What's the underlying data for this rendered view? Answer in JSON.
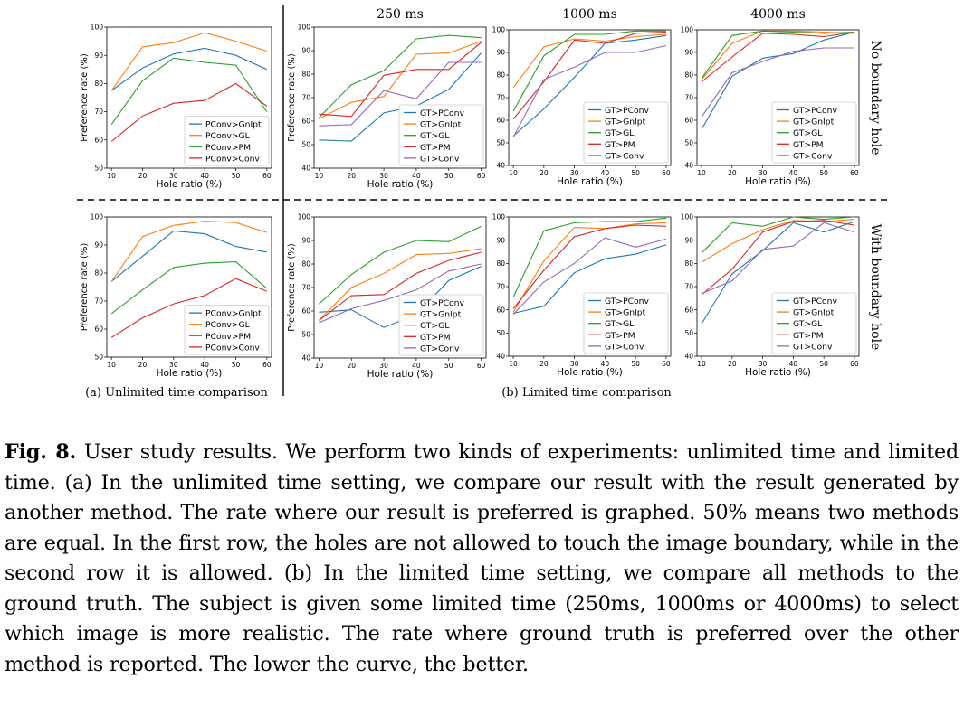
{
  "figure": {
    "column_titles": [
      "250 ms",
      "1000 ms",
      "4000 ms"
    ],
    "row_titles": [
      "No boundary hole",
      "With boundary hole"
    ],
    "subcaptions": [
      "(a) Unlimited time comparison",
      "(b) Limited time comparison"
    ]
  },
  "caption": {
    "label": "Fig. 8.",
    "text": "User study results. We perform two kinds of experiments: unlimited time and limited time. (a) In the unlimited time setting, we compare our result with the result generated by another method. The rate where our result is preferred is graphed. 50% means two methods are equal. In the first row, the holes are not allowed to touch the image boundary, while in the second row it is allowed. (b) In the limited time setting, we compare all methods to the ground truth. The subject is given some limited time (250ms, 1000ms or 4000ms) to select which image is more realistic. The rate where ground truth is preferred over the other method is reported. The lower the curve, the better."
  },
  "colors": {
    "blue": "#1f77b4",
    "orange": "#ff7f0e",
    "green": "#2ca02c",
    "red": "#d62728",
    "purple": "#9467bd"
  },
  "chart_data": [
    {
      "id": "unlimited-no-boundary",
      "type": "line",
      "xlabel": "Hole ratio (%)",
      "ylabel": "Preference rate (%)",
      "x": [
        10,
        20,
        30,
        40,
        50,
        60
      ],
      "ylim": [
        50,
        100
      ],
      "yticks": [
        50,
        60,
        70,
        80,
        90,
        100
      ],
      "series": [
        {
          "name": "PConv>GnIpt",
          "color": "#1f77b4",
          "values": [
            77.5,
            85.5,
            90.5,
            92.5,
            90,
            85
          ]
        },
        {
          "name": "PConv>GL",
          "color": "#ff7f0e",
          "values": [
            77.5,
            93,
            94.5,
            98,
            95,
            91.5
          ]
        },
        {
          "name": "PConv>PM",
          "color": "#2ca02c",
          "values": [
            65.5,
            81,
            89,
            87.5,
            86.5,
            70
          ]
        },
        {
          "name": "PConv>Conv",
          "color": "#d62728",
          "values": [
            59.5,
            68.5,
            73,
            74,
            80,
            72
          ]
        }
      ]
    },
    {
      "id": "250ms-no-boundary",
      "type": "line",
      "xlabel": "Hole ratio (%)",
      "ylabel": "Preference rate (%)",
      "x": [
        10,
        20,
        30,
        40,
        50,
        60
      ],
      "ylim": [
        40,
        100
      ],
      "yticks": [
        40,
        50,
        60,
        70,
        80,
        90,
        100
      ],
      "series": [
        {
          "name": "GT>PConv",
          "color": "#1f77b4",
          "values": [
            52,
            51.5,
            63.5,
            66.5,
            73.5,
            89
          ]
        },
        {
          "name": "GT>GnIpt",
          "color": "#ff7f0e",
          "values": [
            61,
            68,
            70.5,
            88.5,
            89,
            94
          ]
        },
        {
          "name": "GT>GL",
          "color": "#2ca02c",
          "values": [
            61.5,
            75.5,
            81.5,
            95,
            96.5,
            95.5
          ]
        },
        {
          "name": "GT>PM",
          "color": "#d62728",
          "values": [
            63,
            62,
            79.5,
            82,
            82,
            93.5
          ]
        },
        {
          "name": "GT>Conv",
          "color": "#9467bd",
          "values": [
            58,
            58.5,
            73,
            69.5,
            85,
            85
          ]
        }
      ]
    },
    {
      "id": "1000ms-no-boundary",
      "type": "line",
      "xlabel": "Hole ratio (%)",
      "ylabel": "",
      "x": [
        10,
        20,
        30,
        40,
        50,
        60
      ],
      "ylim": [
        40,
        100
      ],
      "yticks": [
        40,
        50,
        60,
        70,
        80,
        90,
        100
      ],
      "series": [
        {
          "name": "GT>PConv",
          "color": "#1f77b4",
          "values": [
            53,
            65,
            79,
            94,
            95.5,
            97.5
          ]
        },
        {
          "name": "GT>GnIpt",
          "color": "#ff7f0e",
          "values": [
            74.5,
            92.5,
            96,
            95,
            97,
            98
          ]
        },
        {
          "name": "GT>GL",
          "color": "#2ca02c",
          "values": [
            64,
            88.5,
            98,
            98,
            99.5,
            99.5
          ]
        },
        {
          "name": "GT>PM",
          "color": "#d62728",
          "values": [
            60.5,
            77,
            95.5,
            94,
            98.5,
            99
          ]
        },
        {
          "name": "GT>Conv",
          "color": "#9467bd",
          "values": [
            52.5,
            78,
            83.5,
            90,
            90,
            93
          ]
        }
      ]
    },
    {
      "id": "4000ms-no-boundary",
      "type": "line",
      "xlabel": "Hole ratio (%)",
      "ylabel": "",
      "x": [
        10,
        20,
        30,
        40,
        50,
        60
      ],
      "ylim": [
        40,
        100
      ],
      "yticks": [
        40,
        50,
        60,
        70,
        80,
        90,
        100
      ],
      "series": [
        {
          "name": "GT>PConv",
          "color": "#1f77b4",
          "values": [
            56,
            79.5,
            87.5,
            89.5,
            95.5,
            99
          ]
        },
        {
          "name": "GT>GnIpt",
          "color": "#ff7f0e",
          "values": [
            78,
            94,
            99.5,
            99.5,
            99,
            98.5
          ]
        },
        {
          "name": "GT>GL",
          "color": "#2ca02c",
          "values": [
            78.5,
            97.5,
            99.5,
            99,
            98.5,
            99
          ]
        },
        {
          "name": "GT>PM",
          "color": "#d62728",
          "values": [
            77,
            88,
            98.5,
            98,
            97,
            99
          ]
        },
        {
          "name": "GT>Conv",
          "color": "#9467bd",
          "values": [
            61.5,
            81,
            86,
            90.5,
            92,
            92
          ]
        }
      ]
    },
    {
      "id": "unlimited-with-boundary",
      "type": "line",
      "xlabel": "Hole ratio (%)",
      "ylabel": "Preference rate (%)",
      "x": [
        10,
        20,
        30,
        40,
        50,
        60
      ],
      "ylim": [
        50,
        100
      ],
      "yticks": [
        50,
        60,
        70,
        80,
        90,
        100
      ],
      "series": [
        {
          "name": "PConv>GnIpt",
          "color": "#1f77b4",
          "values": [
            77,
            86,
            95,
            94,
            89.5,
            87.5
          ]
        },
        {
          "name": "PConv>GL",
          "color": "#ff7f0e",
          "values": [
            77,
            93,
            97,
            98.5,
            98,
            94.5
          ]
        },
        {
          "name": "PConv>PM",
          "color": "#2ca02c",
          "values": [
            65.5,
            74,
            82,
            83.5,
            84,
            74.5
          ]
        },
        {
          "name": "PConv>Conv",
          "color": "#d62728",
          "values": [
            57,
            64,
            69,
            72,
            78,
            73.5
          ]
        }
      ]
    },
    {
      "id": "250ms-with-boundary",
      "type": "line",
      "xlabel": "Hole ratio (%)",
      "ylabel": "Preference rate (%)",
      "x": [
        10,
        20,
        30,
        40,
        50,
        60
      ],
      "ylim": [
        40,
        100
      ],
      "yticks": [
        40,
        50,
        60,
        70,
        80,
        90,
        100
      ],
      "series": [
        {
          "name": "GT>PConv",
          "color": "#1f77b4",
          "values": [
            59.5,
            60.5,
            53,
            58.5,
            73,
            79
          ]
        },
        {
          "name": "GT>GnIpt",
          "color": "#ff7f0e",
          "values": [
            56,
            70,
            76,
            84,
            84.5,
            86.5
          ]
        },
        {
          "name": "GT>GL",
          "color": "#2ca02c",
          "values": [
            63,
            75.5,
            85,
            90,
            89.5,
            96
          ]
        },
        {
          "name": "GT>PM",
          "color": "#d62728",
          "values": [
            56,
            66.5,
            67,
            76,
            81.5,
            85
          ]
        },
        {
          "name": "GT>Conv",
          "color": "#9467bd",
          "values": [
            55,
            61,
            64.5,
            69,
            77,
            80
          ]
        }
      ]
    },
    {
      "id": "1000ms-with-boundary",
      "type": "line",
      "xlabel": "Hole ratio (%)",
      "ylabel": "",
      "x": [
        10,
        20,
        30,
        40,
        50,
        60
      ],
      "ylim": [
        40,
        100
      ],
      "yticks": [
        40,
        50,
        60,
        70,
        80,
        90,
        100
      ],
      "series": [
        {
          "name": "GT>PConv",
          "color": "#1f77b4",
          "values": [
            58.5,
            61.5,
            76,
            82,
            84,
            88
          ]
        },
        {
          "name": "GT>GnIpt",
          "color": "#ff7f0e",
          "values": [
            59,
            81,
            95.5,
            95,
            97,
            97.5
          ]
        },
        {
          "name": "GT>GL",
          "color": "#2ca02c",
          "values": [
            65.5,
            94,
            97.5,
            98,
            98,
            99.5
          ]
        },
        {
          "name": "GT>PM",
          "color": "#d62728",
          "values": [
            60.5,
            77,
            91.5,
            95,
            96.5,
            96
          ]
        },
        {
          "name": "GT>Conv",
          "color": "#9467bd",
          "values": [
            58,
            72,
            80,
            91,
            87,
            90.5
          ]
        }
      ]
    },
    {
      "id": "4000ms-with-boundary",
      "type": "line",
      "xlabel": "Hole ratio (%)",
      "ylabel": "",
      "x": [
        10,
        20,
        30,
        40,
        50,
        60
      ],
      "ylim": [
        40,
        100
      ],
      "yticks": [
        40,
        50,
        60,
        70,
        80,
        90,
        100
      ],
      "series": [
        {
          "name": "GT>PConv",
          "color": "#1f77b4",
          "values": [
            54,
            75.5,
            85.5,
            97.5,
            93.5,
            98
          ]
        },
        {
          "name": "GT>GnIpt",
          "color": "#ff7f0e",
          "values": [
            80.5,
            88.5,
            94.5,
            98.5,
            98,
            99
          ]
        },
        {
          "name": "GT>GL",
          "color": "#2ca02c",
          "values": [
            84.5,
            97.5,
            96,
            100,
            99,
            100
          ]
        },
        {
          "name": "GT>PM",
          "color": "#d62728",
          "values": [
            66.5,
            77.5,
            93.5,
            98,
            98.5,
            96.5
          ]
        },
        {
          "name": "GT>Conv",
          "color": "#9467bd",
          "values": [
            67,
            72.5,
            86,
            87.5,
            97.5,
            93.5
          ]
        }
      ]
    }
  ]
}
